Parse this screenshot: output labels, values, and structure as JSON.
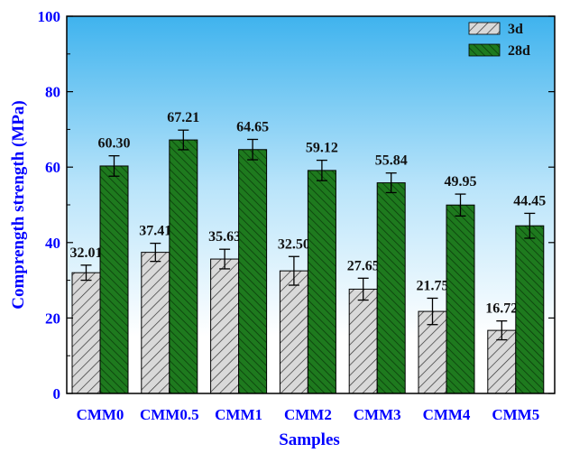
{
  "chart_data": {
    "type": "bar",
    "xlabel": "Samples",
    "ylabel": "Comprength strength (MPa)",
    "ylim": [
      0,
      100
    ],
    "yticks": [
      0,
      20,
      40,
      60,
      80,
      100
    ],
    "grid": false,
    "legend_position": "top-right",
    "background": "vertical gradient light blue to white",
    "categories": [
      "CMM0",
      "CMM0.5",
      "CMM1",
      "CMM2",
      "CMM3",
      "CMM4",
      "CMM5"
    ],
    "series": [
      {
        "name": "3d",
        "values": [
          32.01,
          37.41,
          35.63,
          32.5,
          27.65,
          21.75,
          16.72
        ],
        "errors": [
          2.0,
          2.4,
          2.6,
          3.8,
          2.9,
          3.5,
          2.5
        ],
        "labels": [
          "32.01",
          "37.41",
          "35.63",
          "32.50",
          "27.65",
          "21.75",
          "16.72"
        ],
        "color": "#d9d9d9",
        "hatch_color": "#333333"
      },
      {
        "name": "28d",
        "values": [
          60.3,
          67.21,
          64.65,
          59.12,
          55.84,
          49.95,
          44.45
        ],
        "errors": [
          2.7,
          2.6,
          2.7,
          2.7,
          2.6,
          2.9,
          3.3
        ],
        "labels": [
          "60.30",
          "67.21",
          "64.65",
          "59.12",
          "55.84",
          "49.95",
          "44.45"
        ],
        "color": "#1e7a1e",
        "hatch_color": "#0b3d0b"
      }
    ]
  }
}
